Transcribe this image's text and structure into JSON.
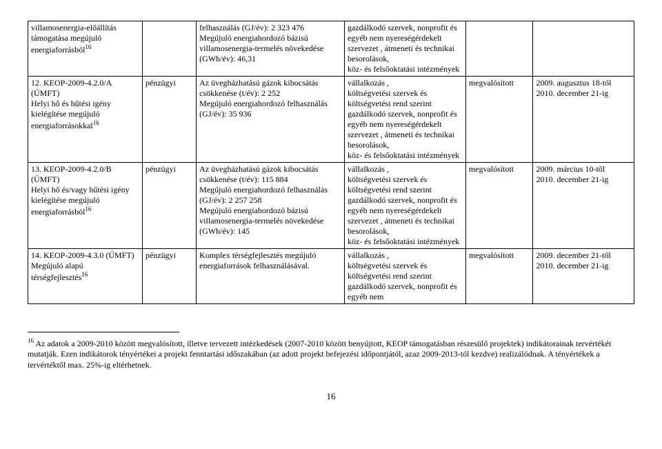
{
  "rows": [
    {
      "c0": "villamosenergia-előállítás támogatása megújuló energiaforrásból",
      "c0_sup": "16",
      "c1": "",
      "c2": "felhasználás (GJ/év): 2 323 476\nMegújuló energiahordozó bázisú villamosenergia-termelés növekedése (GWh/év): 46,31",
      "c3": "gazdálkodó szervek, nonprofit és egyéb nem nyereségérdekelt szervezet , átmeneti és technikai besorolások,\nköz- és felsőoktatási intézmények",
      "c4": "",
      "c5": ""
    },
    {
      "c0": "12. KEOP-2009-4.2.0/A (ÚMFT)\nHelyi hő és hűtési igény kielégítése megújuló energiaforrásokkal",
      "c0_sup": "16",
      "c1": "pénzügyi",
      "c2": "Az üvegházhatású gázok kibocsátás csökkenése (t/év): 2 252\nMegújuló energiahordozó felhasználás (GJ/év): 35 936",
      "c3": "vállalkozás ,\n költségvetési szervek és költségvetési rend szerint gazdálkodó szervek, nonprofit és egyéb nem nyereségérdekelt szervezet , átmeneti és technikai besorolások,\nköz- és felsőoktatási intézmények",
      "c4": "megvalósított",
      "c5": "2009. augusztus 18-tól\n2010. december 21-ig"
    },
    {
      "c0": "13. KEOP-2009-4.2.0/B (ÚMFT)\nHelyi hő és/vagy hűtési igény kielégítése megújuló energiaforrásból",
      "c0_sup": "16",
      "c1": "pénzügyi",
      "c2": "Az üvegházhatású gázok kibocsátás csökkenése (t/év): 115 884\nMegújuló energiahordozó felhasználás (GJ/év): 2 257 258\nMegújuló energiahordozó bázisú villamosenergia-termelés növekedése (GWh/év): 145",
      "c3": "vállalkozás ,\n költségvetési szervek és költségvetési rend szerint gazdálkodó szervek, nonprofit és egyéb nem nyereségérdekelt szervezet , átmeneti és technikai besorolások,\nköz- és felsőoktatási intézmények",
      "c4": "megvalósított",
      "c5": "2009. március 10-től\n2010. december 21-ig"
    },
    {
      "c0": "14. KEOP-2009-4.3.0 (ÚMFT)\nMegújuló alapú térségfejlesztés",
      "c0_sup": "16",
      "c1": "pénzügyi",
      "c2": "Komplex térségfejlesztés megújuló energiaforrások felhasználásával.",
      "c3": "vállalkozás ,\n költségvetési szervek és költségvetési rend szerint gazdálkodó szervek, nonprofit és egyéb nem",
      "c4": "megvalósított",
      "c5": "2009. december 21-től\n2010. december 21-ig"
    }
  ],
  "footnote_num": "16",
  "footnote_text": " Az adatok a 2009-2010 között megvalósított, illetve tervezett intézkedések (2007-2010 között benyújtott, KEOP támogatásban részesülő projektek)  indikátorainak tervértékét mutatják. Ezen indikátorok tényértékei a projekt fenntartási időszakában (az adott projekt befejezési időpontjától, azaz 2009-2013-tól kezdve) realizálódnak. A tényértékek a tervértéktől max. 25%-ig eltérhetnek.",
  "page_number": "16"
}
